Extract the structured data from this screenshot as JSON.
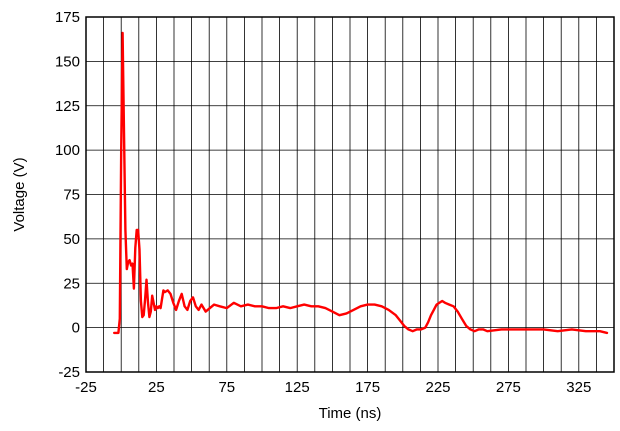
{
  "chart_data": {
    "type": "line",
    "xlabel": "Time (ns)",
    "ylabel": "Voltage (V)",
    "xlim": [
      -25,
      350
    ],
    "ylim": [
      -25,
      175
    ],
    "xticks": [
      -25,
      25,
      75,
      125,
      175,
      225,
      275,
      325
    ],
    "yticks": [
      -25,
      0,
      25,
      50,
      75,
      100,
      125,
      150,
      175
    ],
    "grid": true,
    "legend": "none",
    "series": [
      {
        "color": "#ff0000",
        "x": [
          -5,
          -2,
          -1,
          0,
          1,
          2,
          3,
          4,
          5,
          6,
          7,
          8,
          9,
          10,
          11,
          12,
          13,
          14,
          15,
          16,
          17,
          18,
          19,
          20,
          21,
          22,
          23,
          24,
          25,
          26,
          27,
          28,
          29,
          30,
          31,
          33,
          35,
          37,
          39,
          41,
          43,
          45,
          47,
          49,
          51,
          53,
          55,
          57,
          60,
          63,
          66,
          70,
          75,
          80,
          85,
          90,
          95,
          100,
          105,
          110,
          115,
          120,
          125,
          130,
          135,
          140,
          145,
          150,
          155,
          160,
          165,
          170,
          175,
          180,
          185,
          190,
          195,
          198,
          201,
          204,
          207,
          210,
          213,
          216,
          218,
          220,
          222,
          224,
          226,
          228,
          230,
          233,
          236,
          239,
          242,
          245,
          248,
          251,
          254,
          257,
          260,
          270,
          280,
          290,
          300,
          310,
          320,
          330,
          340,
          345
        ],
        "y": [
          -3,
          -3,
          5,
          100,
          166,
          110,
          55,
          33,
          37,
          38,
          35,
          36,
          22,
          45,
          55,
          55,
          44,
          15,
          6,
          7,
          16,
          27,
          14,
          6,
          9,
          18,
          14,
          10,
          12,
          11,
          12,
          11,
          16,
          21,
          20,
          21,
          19,
          14,
          10,
          15,
          19,
          12,
          10,
          15,
          17,
          12,
          10,
          13,
          9,
          11,
          13,
          12,
          11,
          14,
          12,
          13,
          12,
          12,
          11,
          11,
          12,
          11,
          12,
          13,
          12,
          12,
          11,
          9,
          7,
          8,
          10,
          12,
          13,
          13,
          12,
          10,
          7,
          4,
          1,
          -1,
          -2,
          -1,
          -1,
          0,
          3,
          7,
          10,
          13,
          14,
          15,
          14,
          13,
          12,
          9,
          5,
          1,
          -1,
          -2,
          -1,
          -1,
          -2,
          -1,
          -1,
          -1,
          -1,
          -2,
          -1,
          -2,
          -2,
          -3
        ]
      }
    ]
  }
}
